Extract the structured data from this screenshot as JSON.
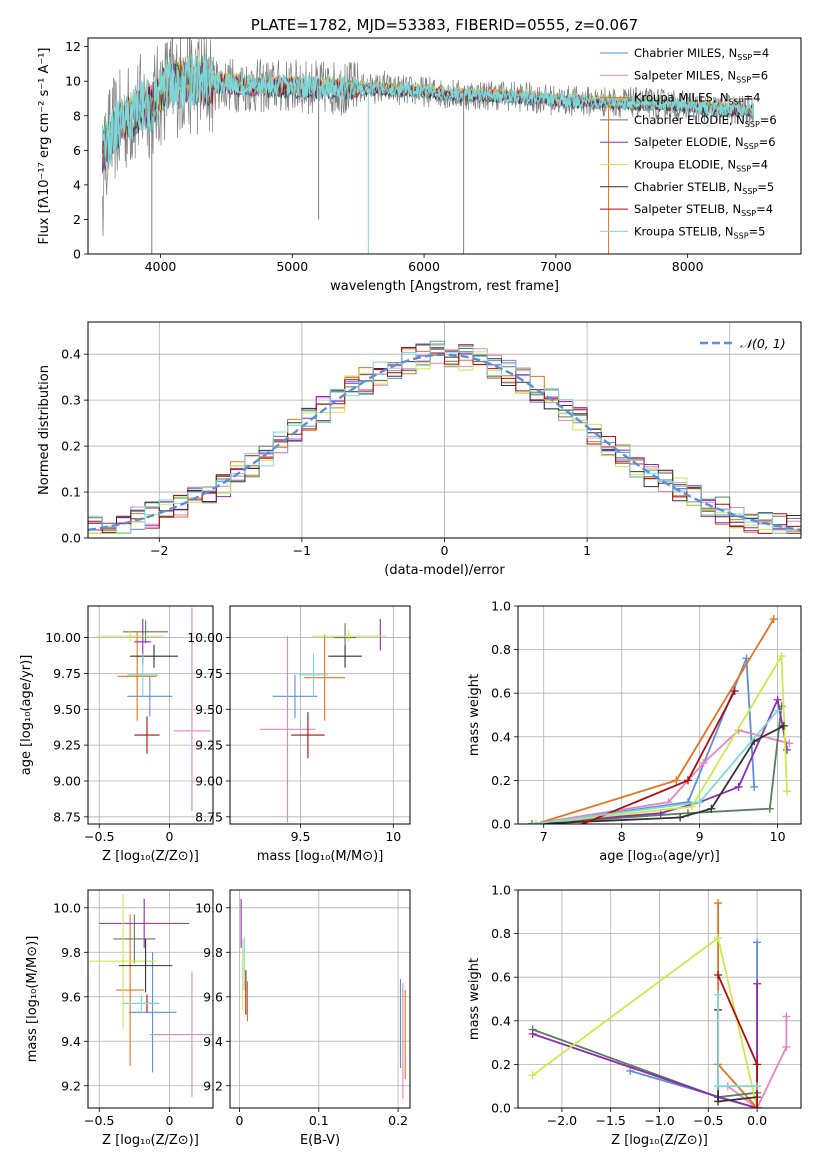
{
  "colors": {
    "chabrier_miles": "#5b8fd9",
    "salpeter_miles": "#e684c5",
    "kroupa_miles": "#e8731c",
    "chabrier_elodie": "#5a7d5a",
    "salpeter_elodie": "#8e2bb5",
    "kroupa_elodie": "#cfe84a",
    "chabrier_stelib": "#333333",
    "salpeter_stelib": "#b00d0d",
    "kroupa_stelib": "#7ad9d9",
    "data_grey": "#7f7f7f",
    "grid": "#b0b0b0"
  },
  "models": [
    {
      "key": "chabrier_miles",
      "label": "Chabrier MILES, N",
      "nssp": "=4"
    },
    {
      "key": "salpeter_miles",
      "label": "Salpeter MILES, N",
      "nssp": "=6"
    },
    {
      "key": "kroupa_miles",
      "label": "Kroupa MILES, N",
      "nssp": "=4"
    },
    {
      "key": "chabrier_elodie",
      "label": "Chabrier ELODIE, N",
      "nssp": "=6"
    },
    {
      "key": "salpeter_elodie",
      "label": "Salpeter ELODIE, N",
      "nssp": "=6"
    },
    {
      "key": "kroupa_elodie",
      "label": "Kroupa ELODIE, N",
      "nssp": "=4"
    },
    {
      "key": "chabrier_stelib",
      "label": "Chabrier STELIB, N",
      "nssp": "=5"
    },
    {
      "key": "salpeter_stelib",
      "label": "Salpeter STELIB, N",
      "nssp": "=4"
    },
    {
      "key": "kroupa_stelib",
      "label": "Kroupa STELIB, N",
      "nssp": "=5"
    }
  ],
  "nssp_subscript": "SSP",
  "chart_data": [
    {
      "id": "spectrum",
      "type": "line",
      "title": "PLATE=1782, MJD=53383, FIBERID=0555, z=0.067",
      "xlabel": "wavelength [Angstrom, rest frame]",
      "ylabel": "Flux [fλ10⁻¹⁷ erg cm⁻² s⁻¹ A⁻¹]",
      "xlim": [
        3450,
        8860
      ],
      "ylim": [
        0,
        12.5
      ],
      "xticks": [
        4000,
        5000,
        6000,
        7000,
        8000
      ],
      "yticks": [
        0,
        2,
        4,
        6,
        8,
        10,
        12
      ],
      "legend": "right",
      "continuum": {
        "x": [
          3550,
          3650,
          3750,
          3850,
          3950,
          4050,
          4200,
          4400,
          4700,
          5000,
          5300,
          5600,
          6000,
          6300,
          6600,
          7000,
          7400,
          7800,
          8200,
          8500
        ],
        "y": [
          5.8,
          7.2,
          7.9,
          8.5,
          8.7,
          9.8,
          10.0,
          9.9,
          9.7,
          9.7,
          9.6,
          9.6,
          9.4,
          9.2,
          9.2,
          8.9,
          8.8,
          8.7,
          8.4,
          8.3
        ]
      },
      "deep_lines": [
        {
          "x": 3934,
          "y": 0
        },
        {
          "x": 5577,
          "y": 0
        },
        {
          "x": 6300,
          "y": 0
        },
        {
          "x": 7400,
          "y": 0
        },
        {
          "x": 5200,
          "y": 2.0
        }
      ],
      "spikes": [
        {
          "x": 4120,
          "y": 11.6
        },
        {
          "x": 4360,
          "y": 11.3
        },
        {
          "x": 5060,
          "y": 10.9
        },
        {
          "x": 5400,
          "y": 11.0
        },
        {
          "x": 5700,
          "y": 10.6
        }
      ]
    },
    {
      "id": "residuals",
      "type": "line",
      "xlabel": "(data-model)/error",
      "ylabel": "Normed distribution",
      "xlim": [
        -2.5,
        2.5
      ],
      "ylim": [
        0,
        0.47
      ],
      "xticks": [
        -2,
        -1,
        0,
        1,
        2
      ],
      "yticks": [
        0.0,
        0.1,
        0.2,
        0.3,
        0.4
      ],
      "legend": "top-right",
      "legend_label": "𝒩(0, 1)",
      "bins": 50
    },
    {
      "id": "age_vs_z",
      "type": "scatter",
      "xlabel": "Z [log₁₀(Z/Z⊙)]",
      "ylabel": "age  [log₁₀(age/yr)]",
      "xlim": [
        -0.58,
        0.31
      ],
      "ylim": [
        8.7,
        10.22
      ],
      "xticks": [
        -0.5,
        0.0
      ],
      "yticks": [
        8.75,
        9.0,
        9.25,
        9.5,
        9.75,
        10.0
      ],
      "ytick_labels": [
        "8.75",
        "9.00",
        "9.25",
        "9.50",
        "9.75",
        "10.00"
      ],
      "points": [
        {
          "model": "chabrier_miles",
          "x": -0.14,
          "xerr": 0.16,
          "y": 9.59,
          "yerr": 0.14
        },
        {
          "model": "salpeter_miles",
          "x": 0.16,
          "xerr": 0.13,
          "y": 9.35,
          "yerr": 0.0
        },
        {
          "model": "salpeter_miles",
          "x": 0.16,
          "xerr": 0.0,
          "y": 9.5,
          "yerr": 0.71
        },
        {
          "model": "kroupa_miles",
          "x": -0.23,
          "xerr": 0.14,
          "y": 9.73,
          "yerr": 0.31
        },
        {
          "model": "chabrier_elodie",
          "x": -0.17,
          "xerr": 0.16,
          "y": 10.04,
          "yerr": 0.08
        },
        {
          "model": "salpeter_elodie",
          "x": -0.19,
          "xerr": 0.06,
          "y": 9.97,
          "yerr": 0.16
        },
        {
          "model": "kroupa_elodie",
          "x": -0.28,
          "xerr": 0.24,
          "y": 10.01,
          "yerr": 0.04
        },
        {
          "model": "chabrier_stelib",
          "x": -0.11,
          "xerr": 0.17,
          "y": 9.87,
          "yerr": 0.08
        },
        {
          "model": "salpeter_stelib",
          "x": -0.16,
          "xerr": 0.09,
          "y": 9.32,
          "yerr": 0.13
        },
        {
          "model": "kroupa_stelib",
          "x": -0.19,
          "xerr": 0.11,
          "y": 9.74,
          "yerr": 0.15
        }
      ]
    },
    {
      "id": "age_vs_mass",
      "type": "scatter",
      "xlabel": "mass [log₁₀(M/M⊙)]",
      "xlim": [
        9.12,
        10.09
      ],
      "ylim": [
        8.7,
        10.22
      ],
      "xticks": [
        9.5,
        10.0
      ],
      "yticks": [
        8.75,
        9.0,
        9.25,
        9.5,
        9.75,
        10.0
      ],
      "ytick_labels": [
        "8.75",
        "9.00",
        "9.25",
        "9.50",
        "9.75",
        "10.00"
      ],
      "points": [
        {
          "model": "chabrier_miles",
          "x": 9.47,
          "xerr": 0.12,
          "y": 9.59,
          "yerr": 0.15
        },
        {
          "model": "salpeter_miles",
          "x": 9.43,
          "xerr": 0.15,
          "y": 9.36,
          "yerr": 0.65
        },
        {
          "model": "kroupa_miles",
          "x": 9.63,
          "xerr": 0.11,
          "y": 9.72,
          "yerr": 0.3
        },
        {
          "model": "chabrier_elodie",
          "x": 9.74,
          "xerr": 0.06,
          "y": 10.0,
          "yerr": 0.1
        },
        {
          "model": "salpeter_elodie",
          "x": 9.93,
          "xerr": 0.0,
          "y": 10.02,
          "yerr": 0.11
        },
        {
          "model": "kroupa_elodie",
          "x": 9.76,
          "xerr": 0.2,
          "y": 10.01,
          "yerr": 0.04
        },
        {
          "model": "chabrier_stelib",
          "x": 9.74,
          "xerr": 0.09,
          "y": 9.87,
          "yerr": 0.08
        },
        {
          "model": "salpeter_stelib",
          "x": 9.54,
          "xerr": 0.09,
          "y": 9.32,
          "yerr": 0.16
        },
        {
          "model": "kroupa_stelib",
          "x": 9.57,
          "xerr": 0.08,
          "y": 9.74,
          "yerr": 0.15
        }
      ]
    },
    {
      "id": "weight_vs_age",
      "type": "line",
      "xlabel": "age  [log₁₀(age/yr)]",
      "ylabel": "mass weight",
      "xlim": [
        6.67,
        10.3
      ],
      "ylim": [
        0,
        1.0
      ],
      "xticks": [
        7,
        8,
        9,
        10
      ],
      "yticks": [
        0.0,
        0.2,
        0.4,
        0.6,
        0.8,
        1.0
      ],
      "series": [
        {
          "model": "chabrier_miles",
          "x": [
            6.85,
            8.85,
            9.6,
            9.7
          ],
          "y": [
            0.0,
            0.1,
            0.76,
            0.17
          ]
        },
        {
          "model": "salpeter_miles",
          "x": [
            6.85,
            8.6,
            9.05,
            9.5,
            10.15
          ],
          "y": [
            0.0,
            0.1,
            0.28,
            0.43,
            0.37
          ]
        },
        {
          "model": "kroupa_miles",
          "x": [
            6.9,
            8.7,
            9.95
          ],
          "y": [
            0.0,
            0.2,
            0.94
          ]
        },
        {
          "model": "chabrier_elodie",
          "x": [
            6.85,
            8.85,
            9.9,
            10.05
          ],
          "y": [
            0.0,
            0.05,
            0.07,
            0.54
          ]
        },
        {
          "model": "salpeter_elodie",
          "x": [
            6.85,
            8.5,
            9.0,
            9.5,
            10.0,
            10.12
          ],
          "y": [
            0.0,
            0.05,
            0.1,
            0.17,
            0.57,
            0.34
          ]
        },
        {
          "model": "kroupa_elodie",
          "x": [
            6.9,
            8.9,
            10.05,
            10.12
          ],
          "y": [
            0.0,
            0.08,
            0.77,
            0.15
          ]
        },
        {
          "model": "chabrier_stelib",
          "x": [
            6.85,
            8.75,
            9.15,
            9.7,
            10.08
          ],
          "y": [
            0.0,
            0.03,
            0.07,
            0.38,
            0.45
          ]
        },
        {
          "model": "salpeter_stelib",
          "x": [
            7.5,
            8.85,
            9.45
          ],
          "y": [
            0.0,
            0.2,
            0.61
          ]
        },
        {
          "model": "kroupa_stelib",
          "x": [
            6.85,
            9.0,
            10.0
          ],
          "y": [
            0.0,
            0.1,
            0.52
          ]
        }
      ]
    },
    {
      "id": "mass_vs_z",
      "type": "scatter",
      "xlabel": "Z [log₁₀(Z/Z⊙)]",
      "ylabel": "mass [log₁₀(M/M⊙)]",
      "xlim": [
        -0.58,
        0.31
      ],
      "ylim": [
        9.1,
        10.08
      ],
      "xticks": [
        -0.5,
        0.0
      ],
      "yticks": [
        9.2,
        9.4,
        9.6,
        9.8,
        10.0
      ],
      "ytick_labels": [
        "9.2",
        "9.4",
        "9.6",
        "9.8",
        "10.0"
      ],
      "points": [
        {
          "model": "chabrier_miles",
          "x": -0.12,
          "xerr": 0.17,
          "y": 9.53,
          "yerr": 0.27
        },
        {
          "model": "salpeter_miles",
          "x": 0.16,
          "xerr": 0.3,
          "y": 9.43,
          "yerr": 0.0
        },
        {
          "model": "salpeter_miles",
          "x": 0.16,
          "xerr": 0.0,
          "y": 9.43,
          "yerr": 0.28
        },
        {
          "model": "kroupa_miles",
          "x": -0.28,
          "xerr": 0.1,
          "y": 9.63,
          "yerr": 0.34
        },
        {
          "model": "chabrier_elodie",
          "x": -0.25,
          "xerr": 0.15,
          "y": 9.86,
          "yerr": 0.11
        },
        {
          "model": "salpeter_elodie",
          "x": -0.18,
          "xerr": 0.32,
          "y": 9.93,
          "yerr": 0.11
        },
        {
          "model": "kroupa_elodie",
          "x": -0.33,
          "xerr": 0.24,
          "y": 9.76,
          "yerr": 0.3
        },
        {
          "model": "chabrier_stelib",
          "x": -0.17,
          "xerr": 0.19,
          "y": 9.74,
          "yerr": 0.12
        },
        {
          "model": "salpeter_stelib",
          "x": -0.16,
          "xerr": 0.08,
          "y": 9.57,
          "yerr": 0.04
        },
        {
          "model": "kroupa_stelib",
          "x": -0.2,
          "xerr": 0.13,
          "y": 9.57,
          "yerr": 0.04
        }
      ]
    },
    {
      "id": "mass_vs_ebv",
      "type": "scatter",
      "xlabel": "E(B-V)",
      "xlim": [
        -0.012,
        0.215
      ],
      "ylim": [
        9.1,
        10.08
      ],
      "xticks": [
        0.0,
        0.1,
        0.2
      ],
      "yticks": [
        9.2,
        9.4,
        9.6,
        9.8,
        10.0
      ],
      "ytick_labels": [
        "9.2",
        "9.4",
        "9.6",
        "9.8",
        "10.0"
      ],
      "points": [
        {
          "model": "salpeter_elodie",
          "x": 0.002,
          "y": 9.93,
          "yerr": 0.11
        },
        {
          "model": "kroupa_elodie",
          "x": 0.004,
          "y": 9.7,
          "yerr": 0.16
        },
        {
          "model": "kroupa_stelib",
          "x": 0.006,
          "y": 9.75,
          "yerr": 0.12
        },
        {
          "model": "salpeter_stelib",
          "x": 0.008,
          "y": 9.62,
          "yerr": 0.1
        },
        {
          "model": "kroupa_miles",
          "x": 0.01,
          "y": 9.58,
          "yerr": 0.09
        },
        {
          "model": "chabrier_miles",
          "x": 0.203,
          "y": 9.48,
          "yerr": 0.2
        },
        {
          "model": "salpeter_miles",
          "x": 0.206,
          "y": 9.4,
          "yerr": 0.26
        },
        {
          "model": "kroupa_miles",
          "x": 0.209,
          "y": 9.43,
          "yerr": 0.2
        }
      ]
    },
    {
      "id": "weight_vs_z",
      "type": "line",
      "xlabel": "Z [log₁₀(Z/Z⊙)]",
      "ylabel": "mass weight",
      "xlim": [
        -2.45,
        0.45
      ],
      "ylim": [
        0,
        1.0
      ],
      "xticks": [
        -2.0,
        -1.5,
        -1.0,
        -0.5,
        0.0
      ],
      "xtick_labels": [
        "−2.0",
        "−1.5",
        "−1.0",
        "−0.5",
        "0.0"
      ],
      "yticks": [
        0.0,
        0.2,
        0.4,
        0.6,
        0.8,
        1.0
      ],
      "series": [
        {
          "model": "chabrier_miles",
          "x": [
            -1.3,
            0.0,
            0.0
          ],
          "y": [
            0.17,
            0.0,
            0.76
          ]
        },
        {
          "model": "salpeter_miles",
          "x": [
            -0.3,
            0.0,
            0.3,
            0.3
          ],
          "y": [
            0.1,
            0.0,
            0.28,
            0.42
          ]
        },
        {
          "model": "kroupa_miles",
          "x": [
            -0.4,
            -0.4,
            0.0
          ],
          "y": [
            0.94,
            0.2,
            0.0
          ]
        },
        {
          "model": "chabrier_elodie",
          "x": [
            -2.3,
            -0.4,
            0.0
          ],
          "y": [
            0.36,
            0.05,
            0.07
          ]
        },
        {
          "model": "salpeter_elodie",
          "x": [
            -2.3,
            -0.4,
            0.0,
            0.0
          ],
          "y": [
            0.34,
            0.05,
            0.0,
            0.57
          ]
        },
        {
          "model": "kroupa_elodie",
          "x": [
            -2.3,
            -0.4,
            0.0
          ],
          "y": [
            0.15,
            0.78,
            0.0
          ]
        },
        {
          "model": "chabrier_stelib",
          "x": [
            -0.4,
            -0.4,
            0.0
          ],
          "y": [
            0.45,
            0.03,
            0.05
          ]
        },
        {
          "model": "salpeter_stelib",
          "x": [
            -0.4,
            0.0,
            0.0
          ],
          "y": [
            0.61,
            0.2,
            0.0
          ]
        },
        {
          "model": "kroupa_stelib",
          "x": [
            -0.4,
            -0.4,
            0.0
          ],
          "y": [
            0.52,
            0.1,
            0.1
          ]
        }
      ]
    }
  ]
}
